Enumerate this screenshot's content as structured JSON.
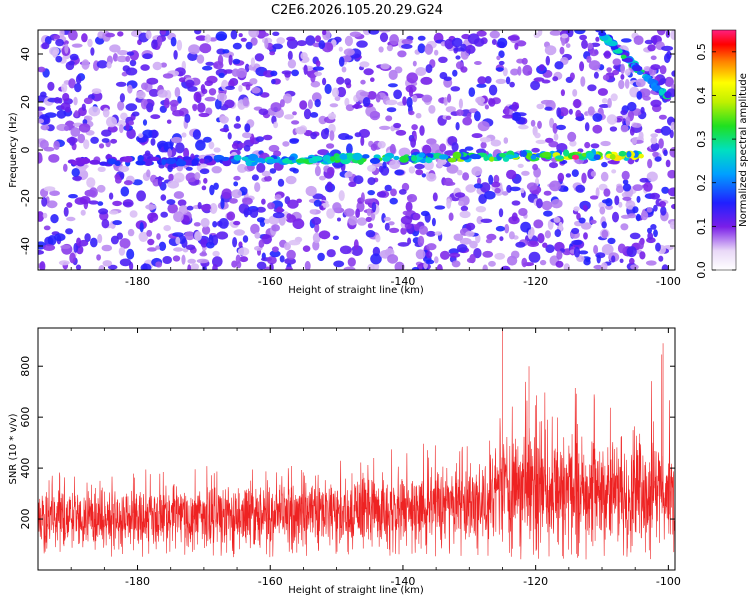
{
  "title": "C2E6.2026.105.20.29.G24",
  "colors": {
    "snr_line": "#ee2222",
    "frame": "#000000",
    "spectro_bg": "#ffffff"
  },
  "chart_data": [
    {
      "type": "heatmap",
      "title": "",
      "xlabel": "Height of straight line (km)",
      "ylabel": "Frequency (Hz)",
      "xlim": [
        -195,
        -99
      ],
      "ylim": [
        -50,
        50
      ],
      "xticks": [
        -180,
        -160,
        -140,
        -120,
        -100
      ],
      "yticks": [
        -40,
        -20,
        0,
        20,
        40
      ],
      "xtick_labels": [
        "-180",
        "-160",
        "-140",
        "-120",
        "-100"
      ],
      "ytick_labels": [
        "-40",
        "-20",
        "0",
        "20",
        "40"
      ],
      "colorbar": {
        "label": "Normalized spectral amplitude",
        "range": [
          0.0,
          0.55
        ],
        "ticks": [
          0.0,
          0.1,
          0.2,
          0.3,
          0.4,
          0.5
        ],
        "tick_labels": [
          "0.0",
          "0.1",
          "0.2",
          "0.3",
          "0.4",
          "0.5"
        ]
      },
      "features": [
        {
          "name": "main trace",
          "x_start": -190,
          "x_end": -104,
          "freq_start": -5,
          "freq_end": -2,
          "peak_amplitude": 0.55,
          "peak_x": -114
        },
        {
          "name": "secondary trace",
          "x_start": -110,
          "x_end": -100,
          "freq_start": 48,
          "freq_end": 22,
          "peak_amplitude": 0.3
        }
      ],
      "background_amplitude": [
        0.05,
        0.15
      ]
    },
    {
      "type": "line",
      "title": "",
      "xlabel": "Height of straight line (km)",
      "ylabel": "SNR (10 * v/v)",
      "xlim": [
        -195,
        -99
      ],
      "ylim": [
        0,
        950
      ],
      "xticks": [
        -180,
        -160,
        -140,
        -120,
        -100
      ],
      "yticks": [
        200,
        400,
        600,
        800
      ],
      "xtick_labels": [
        "-180",
        "-160",
        "-140",
        "-120",
        "-100"
      ],
      "ytick_labels": [
        "200",
        "400",
        "600",
        "800"
      ],
      "series": [
        {
          "name": "SNR",
          "x": [
            -195,
            -190,
            -185,
            -180,
            -175,
            -170,
            -165,
            -160,
            -155,
            -150,
            -145,
            -140,
            -135,
            -130,
            -127,
            -125,
            -120,
            -115,
            -110,
            -105,
            -101,
            -99
          ],
          "baseline": [
            170,
            180,
            175,
            180,
            185,
            180,
            185,
            180,
            190,
            195,
            200,
            205,
            215,
            220,
            235,
            250,
            255,
            260,
            255,
            250,
            245,
            240
          ],
          "upper_envelope": [
            420,
            380,
            390,
            410,
            420,
            420,
            430,
            410,
            430,
            440,
            470,
            500,
            520,
            520,
            520,
            950,
            800,
            760,
            720,
            700,
            890,
            560
          ],
          "lower_envelope": [
            50,
            45,
            50,
            50,
            55,
            50,
            50,
            50,
            55,
            55,
            55,
            55,
            50,
            50,
            50,
            40,
            40,
            40,
            40,
            40,
            40,
            40
          ]
        }
      ],
      "peaks": [
        {
          "x": -125,
          "y": 950
        },
        {
          "x": -121,
          "y": 800
        },
        {
          "x": -100.8,
          "y": 890
        }
      ]
    }
  ]
}
